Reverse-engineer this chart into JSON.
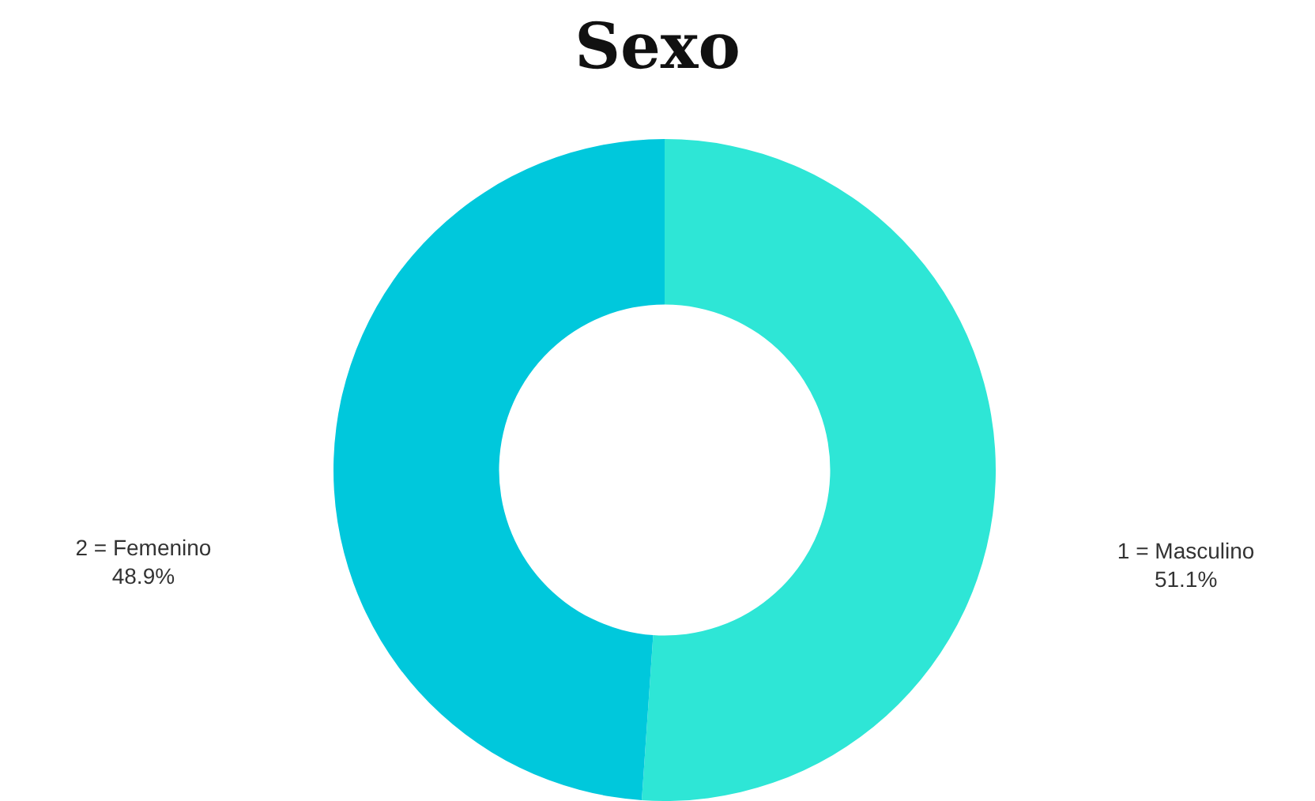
{
  "chart_data": {
    "type": "donut",
    "title": "Sexo",
    "categories": [
      "1 = Masculino",
      "2 = Femenino"
    ],
    "values": [
      51.1,
      48.9
    ],
    "colors": [
      "#2ee6d6",
      "#00c8dc"
    ],
    "value_labels": [
      "51.1%",
      "48.9%"
    ],
    "legend": false
  }
}
